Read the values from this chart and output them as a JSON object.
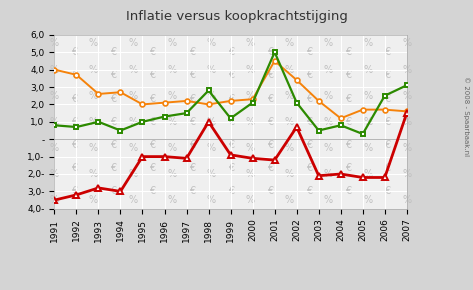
{
  "title": "Inflatie versus koopkrachtstijging",
  "years": [
    1991,
    1992,
    1993,
    1994,
    1995,
    1996,
    1997,
    1998,
    1999,
    2000,
    2001,
    2002,
    2003,
    2004,
    2005,
    2006,
    2007
  ],
  "cpi": [
    4.0,
    3.7,
    2.6,
    2.7,
    2.0,
    2.1,
    2.2,
    2.0,
    2.2,
    2.3,
    4.5,
    3.4,
    2.2,
    1.2,
    1.7,
    1.7,
    1.6
  ],
  "koopkracht": [
    0.8,
    0.7,
    1.0,
    0.5,
    1.0,
    1.3,
    1.5,
    2.8,
    1.2,
    2.1,
    5.0,
    2.1,
    0.5,
    0.8,
    0.3,
    2.5,
    3.1
  ],
  "verschil": [
    -3.5,
    -3.2,
    -2.8,
    -3.0,
    -1.0,
    -1.0,
    -1.1,
    1.0,
    -0.9,
    -1.1,
    -1.2,
    0.7,
    -2.1,
    -2.0,
    -2.2,
    -2.2,
    1.5
  ],
  "cpi_color": "#f5820a",
  "koopkracht_color": "#2c8a00",
  "verschil_color": "#cc0000",
  "background_plot": "#efefef",
  "background_outer": "#d4d4d4",
  "ylim": [
    -4.0,
    6.0
  ],
  "ytick_vals": [
    -4.0,
    -3.0,
    -2.0,
    -1.0,
    0.0,
    1.0,
    2.0,
    3.0,
    4.0,
    5.0,
    6.0
  ],
  "ytick_labels": [
    "4,0-",
    "3,0-",
    "2,0-",
    "1,0-",
    "-",
    "1,0",
    "2,0",
    "3,0",
    "4,0",
    "5,0",
    "6,0"
  ],
  "copyright_text": "© 2008 - Spaarbaak.nl"
}
